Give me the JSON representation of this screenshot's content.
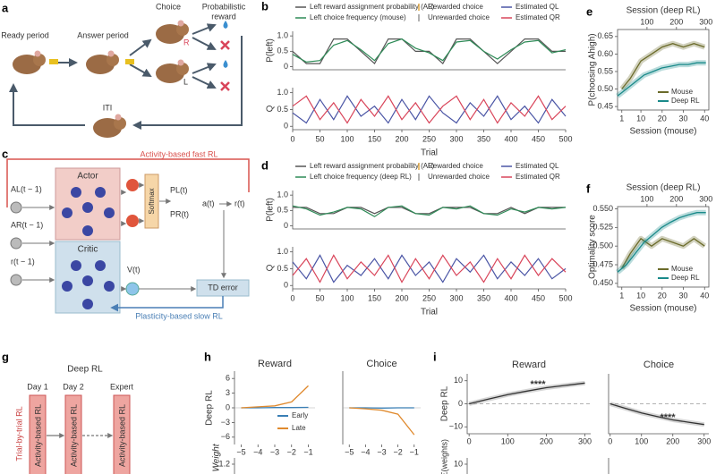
{
  "panel_a": {
    "label": "a",
    "ready": "Ready period",
    "answer": "Answer period",
    "choice": "Choice",
    "reward": [
      "Probabilistic",
      "reward"
    ],
    "right": "R",
    "left": "L",
    "iti": "ITI"
  },
  "panel_b": {
    "label": "b",
    "legend": [
      {
        "name": "Left reward assignment probability (AL)",
        "color": "#555555",
        "marker": "line"
      },
      {
        "name": "Rewarded choice",
        "color": "#e0a845",
        "marker": "tick"
      },
      {
        "name": "Estimated QL",
        "color": "#4a55a5",
        "marker": "line"
      },
      {
        "name": "Left choice frequency (mouse)",
        "color": "#2e8b57",
        "marker": "line"
      },
      {
        "name": "Unrewarded choice",
        "color": "#999999",
        "marker": "tick"
      },
      {
        "name": "Estimated QR",
        "color": "#d9455a",
        "marker": "line"
      }
    ],
    "top": {
      "ylabel": "P(left)",
      "xlim": [
        0,
        500
      ],
      "ylim": [
        -0.1,
        1.15
      ],
      "yticks": [
        0,
        0.5,
        {
          "value": 1,
          "label": "1.0"
        }
      ],
      "x": [
        0,
        25,
        50,
        75,
        100,
        125,
        150,
        175,
        200,
        225,
        250,
        275,
        300,
        325,
        350,
        375,
        400,
        425,
        450,
        475,
        500
      ],
      "series": [
        {
          "color": "#555555",
          "values": [
            0.5,
            0.1,
            0.1,
            0.9,
            0.9,
            0.5,
            0.1,
            0.9,
            0.9,
            0.5,
            0.5,
            0.1,
            0.9,
            0.9,
            0.5,
            0.1,
            0.5,
            0.9,
            0.9,
            0.5,
            0.5
          ]
        },
        {
          "color": "#2e8b57",
          "values": [
            0.4,
            0.15,
            0.2,
            0.7,
            0.85,
            0.55,
            0.2,
            0.75,
            0.9,
            0.6,
            0.45,
            0.2,
            0.8,
            0.85,
            0.5,
            0.25,
            0.55,
            0.8,
            0.85,
            0.45,
            0.55
          ]
        }
      ]
    },
    "bottom": {
      "ylabel": "Q",
      "xlabel": "Trial",
      "xlim": [
        0,
        500
      ],
      "ylim": [
        -0.1,
        1.15
      ],
      "yticks": [
        0,
        0.5,
        {
          "value": 1,
          "label": "1.0"
        }
      ],
      "xticks": [
        0,
        50,
        100,
        150,
        200,
        250,
        300,
        350,
        400,
        450,
        500
      ],
      "x": [
        0,
        25,
        50,
        75,
        100,
        125,
        150,
        175,
        200,
        225,
        250,
        275,
        300,
        325,
        350,
        375,
        400,
        425,
        450,
        475,
        500
      ],
      "series": [
        {
          "color": "#4a55a5",
          "values": [
            0.4,
            0.1,
            0.8,
            0.2,
            0.9,
            0.3,
            0.6,
            0.1,
            0.8,
            0.2,
            0.9,
            0.4,
            0.1,
            0.7,
            0.3,
            0.9,
            0.2,
            0.6,
            0.1,
            0.8,
            0.3
          ]
        },
        {
          "color": "#d9455a",
          "values": [
            0.6,
            0.9,
            0.2,
            0.7,
            0.1,
            0.8,
            0.3,
            0.9,
            0.2,
            0.7,
            0.1,
            0.6,
            0.9,
            0.2,
            0.8,
            0.1,
            0.7,
            0.3,
            0.9,
            0.2,
            0.6
          ]
        }
      ]
    }
  },
  "panel_c": {
    "label": "c",
    "fast": "Activity-based fast RL",
    "actor": "Actor",
    "critic": "Critic",
    "inputs": [
      "AL(t − 1)",
      "AR(t − 1)",
      "r(t − 1)"
    ],
    "softmax": "Softmax",
    "pl": "PL(t)",
    "pr": "PR(t)",
    "action": "a(t)",
    "outcome": "r(t)",
    "value": "V(t)",
    "td": "TD error",
    "slow": "Plasticity-based slow RL"
  },
  "panel_d": {
    "label": "d",
    "legend": [
      {
        "name": "Left reward assignment probability (AL)",
        "color": "#555555",
        "marker": "line"
      },
      {
        "name": "Rewarded choice",
        "color": "#e0a845",
        "marker": "tick"
      },
      {
        "name": "Estimated QL",
        "color": "#4a55a5",
        "marker": "line"
      },
      {
        "name": "Left choice frequency (deep RL)",
        "color": "#2e8b57",
        "marker": "line"
      },
      {
        "name": "Unrewarded choice",
        "color": "#999999",
        "marker": "tick"
      },
      {
        "name": "Estimated QR",
        "color": "#d9455a",
        "marker": "line"
      }
    ],
    "top": {
      "ylabel": "P(left)",
      "xlim": [
        0,
        500
      ],
      "ylim": [
        -0.1,
        1.15
      ],
      "yticks": [
        0,
        0.5,
        {
          "value": 1,
          "label": "1.0"
        }
      ],
      "x": [
        0,
        25,
        50,
        75,
        100,
        125,
        150,
        175,
        200,
        225,
        250,
        275,
        300,
        325,
        350,
        375,
        400,
        425,
        450,
        475,
        500
      ],
      "series": [
        {
          "color": "#555555",
          "values": [
            0.6,
            0.6,
            0.4,
            0.4,
            0.6,
            0.6,
            0.4,
            0.6,
            0.6,
            0.4,
            0.4,
            0.6,
            0.6,
            0.6,
            0.4,
            0.4,
            0.6,
            0.4,
            0.6,
            0.6,
            0.6
          ]
        },
        {
          "color": "#2e8b57",
          "values": [
            0.65,
            0.55,
            0.35,
            0.45,
            0.6,
            0.55,
            0.3,
            0.6,
            0.65,
            0.4,
            0.35,
            0.6,
            0.55,
            0.65,
            0.4,
            0.35,
            0.55,
            0.45,
            0.6,
            0.55,
            0.6
          ]
        }
      ]
    },
    "bottom": {
      "ylabel": "Q",
      "xlabel": "Trial",
      "xlim": [
        0,
        500
      ],
      "ylim": [
        -0.1,
        1.15
      ],
      "yticks": [
        0,
        0.5,
        {
          "value": 1,
          "label": "1.0"
        }
      ],
      "xticks": [
        0,
        50,
        100,
        150,
        200,
        250,
        300,
        350,
        400,
        450,
        500
      ],
      "x": [
        0,
        25,
        50,
        75,
        100,
        125,
        150,
        175,
        200,
        225,
        250,
        275,
        300,
        325,
        350,
        375,
        400,
        425,
        450,
        475,
        500
      ],
      "series": [
        {
          "color": "#4a55a5",
          "values": [
            0.7,
            0.2,
            0.9,
            0.1,
            0.6,
            0.3,
            0.8,
            0.2,
            0.9,
            0.3,
            0.7,
            0.1,
            0.8,
            0.4,
            0.9,
            0.2,
            0.7,
            0.3,
            0.8,
            0.2,
            0.5
          ]
        },
        {
          "color": "#d9455a",
          "values": [
            0.3,
            0.8,
            0.1,
            0.9,
            0.2,
            0.7,
            0.3,
            0.9,
            0.1,
            0.8,
            0.2,
            0.9,
            0.3,
            0.7,
            0.1,
            0.8,
            0.2,
            0.9,
            0.3,
            0.8,
            0.4
          ]
        }
      ]
    }
  },
  "panel_e": {
    "label": "e",
    "x2label": "Session (deep RL)",
    "x2lim": [
      0,
      310
    ],
    "x2ticks": [
      100,
      200,
      300
    ],
    "xlabel": "Session (mouse)",
    "xlim": [
      -1,
      42
    ],
    "xticks": [
      1,
      10,
      20,
      30,
      40
    ],
    "ylabel": "P(choosing Ahigh)",
    "ylim": [
      0.44,
      0.67
    ],
    "yticks": [
      0.45,
      {
        "value": 0.5,
        "label": "0.50"
      },
      0.55,
      {
        "value": 0.6,
        "label": "0.60"
      },
      0.65
    ],
    "legend": [
      "Mouse",
      "Deep RL"
    ],
    "series": [
      {
        "axis": "x",
        "color": "#6b6b2a",
        "x": [
          1,
          5,
          10,
          15,
          20,
          25,
          30,
          35,
          40
        ],
        "values": [
          0.5,
          0.53,
          0.58,
          0.6,
          0.62,
          0.63,
          0.62,
          0.63,
          0.62
        ]
      },
      {
        "axis": "x2",
        "color": "#1a8a8a",
        "x": [
          0,
          30,
          60,
          90,
          120,
          150,
          180,
          210,
          240,
          270,
          300
        ],
        "values": [
          0.48,
          0.5,
          0.52,
          0.54,
          0.55,
          0.56,
          0.565,
          0.57,
          0.57,
          0.575,
          0.575
        ]
      }
    ]
  },
  "panel_f": {
    "label": "f",
    "x2label": "Session (deep RL)",
    "x2lim": [
      0,
      310
    ],
    "x2ticks": [
      100,
      200,
      300
    ],
    "xlabel": "Session (mouse)",
    "xlim": [
      -1,
      42
    ],
    "xticks": [
      1,
      10,
      20,
      30,
      40
    ],
    "ylabel": "Optimality score",
    "ylim": [
      0.445,
      0.553
    ],
    "yticks": [
      {
        "value": 0.45,
        "label": "0.450"
      },
      0.475,
      {
        "value": 0.5,
        "label": "0.500"
      },
      0.525,
      {
        "value": 0.55,
        "label": "0.550"
      }
    ],
    "legend": [
      "Mouse",
      "Deep RL"
    ],
    "series": [
      {
        "axis": "x",
        "color": "#6b6b2a",
        "x": [
          1,
          5,
          10,
          15,
          20,
          25,
          30,
          35,
          40
        ],
        "values": [
          0.47,
          0.49,
          0.51,
          0.5,
          0.51,
          0.505,
          0.5,
          0.51,
          0.5
        ]
      },
      {
        "axis": "x2",
        "color": "#1a8a8a",
        "x": [
          0,
          30,
          60,
          90,
          120,
          150,
          180,
          210,
          240,
          270,
          300
        ],
        "values": [
          0.465,
          0.475,
          0.49,
          0.505,
          0.515,
          0.525,
          0.532,
          0.538,
          0.542,
          0.545,
          0.545
        ]
      }
    ]
  },
  "panel_g": {
    "label": "g",
    "title": "Deep RL",
    "days": [
      "Day 1",
      "Day 2",
      "Expert"
    ],
    "side": "Trial-by-trial RL",
    "boxes": [
      "Activity-based RL",
      "Activity-based RL",
      "Activity-based RL"
    ]
  },
  "panel_h": {
    "label": "h",
    "row": "Deep RL",
    "ylabel": "Weight",
    "xlim": [
      -5.4,
      -0.6
    ],
    "xticks": [
      {
        "value": -5,
        "label": "−5"
      },
      {
        "value": -4,
        "label": "−4"
      },
      {
        "value": -3,
        "label": "−3"
      },
      {
        "value": -2,
        "label": "−2"
      },
      {
        "value": -1,
        "label": "−1"
      }
    ],
    "ylim": [
      -7.5,
      7.5
    ],
    "yticks": [
      6,
      3,
      0,
      {
        "value": -3,
        "label": "−3"
      },
      {
        "value": -6,
        "label": "−6"
      }
    ],
    "legend": [
      "Early",
      "Late"
    ],
    "x": [
      -5,
      -4,
      -3,
      -2,
      -1
    ],
    "row2_yticks": [
      1.2
    ],
    "plots": [
      {
        "title": "Reward",
        "series": [
          {
            "color": "#3a7fb5",
            "values": [
              0,
              0,
              0.05,
              0.05,
              0.1
            ]
          },
          {
            "color": "#e08a2e",
            "values": [
              0,
              0.2,
              0.4,
              1.2,
              4.5
            ]
          }
        ]
      },
      {
        "title": "Choice",
        "series": [
          {
            "color": "#3a7fb5",
            "values": [
              0,
              0,
              -0.05,
              0,
              0
            ]
          },
          {
            "color": "#e08a2e",
            "values": [
              0,
              -0.2,
              -0.5,
              -1.3,
              -5.5
            ]
          }
        ]
      }
    ]
  },
  "panel_i": {
    "label": "i",
    "row": "Deep RL",
    "ylabel": "Σ(weights)",
    "xlim": [
      -5,
      315
    ],
    "xticks": [
      0,
      100,
      200,
      300
    ],
    "ylim": [
      -13,
      13
    ],
    "yticks": [
      10,
      0,
      {
        "value": -10,
        "label": "−10"
      }
    ],
    "x": [
      0,
      50,
      100,
      150,
      200,
      250,
      300
    ],
    "row2_yticks": [
      10
    ],
    "plots": [
      {
        "title": "Reward",
        "stars": "****",
        "color": "#333333",
        "values": [
          0,
          2,
          4,
          5.5,
          7,
          8,
          9
        ]
      },
      {
        "title": "Choice",
        "stars": "****",
        "color": "#333333",
        "values": [
          0,
          -2,
          -4,
          -5.5,
          -7,
          -8,
          -9
        ]
      }
    ]
  }
}
